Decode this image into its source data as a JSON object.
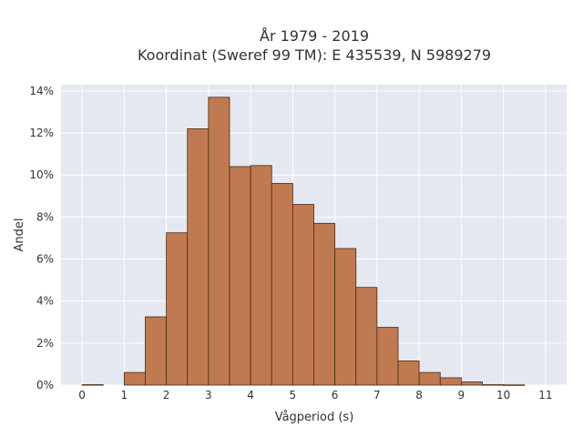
{
  "chart_data": {
    "type": "bar",
    "title_line1": "År 1979 - 2019",
    "title_line2": "Koordinat (Sweref 99 TM): E 435539, N 5989279",
    "xlabel": "Vågperiod (s)",
    "ylabel": "Andel",
    "bin_width": 0.5,
    "bins": [
      {
        "x0": 0.0,
        "x1": 0.5,
        "value": 0.02
      },
      {
        "x0": 1.0,
        "x1": 1.5,
        "value": 0.6
      },
      {
        "x0": 1.5,
        "x1": 2.0,
        "value": 3.25
      },
      {
        "x0": 2.0,
        "x1": 2.5,
        "value": 7.25
      },
      {
        "x0": 2.5,
        "x1": 3.0,
        "value": 12.2
      },
      {
        "x0": 3.0,
        "x1": 3.5,
        "value": 13.7
      },
      {
        "x0": 3.5,
        "x1": 4.0,
        "value": 10.4
      },
      {
        "x0": 4.0,
        "x1": 4.5,
        "value": 10.45
      },
      {
        "x0": 4.5,
        "x1": 5.0,
        "value": 9.6
      },
      {
        "x0": 5.0,
        "x1": 5.5,
        "value": 8.6
      },
      {
        "x0": 5.5,
        "x1": 6.0,
        "value": 7.7
      },
      {
        "x0": 6.0,
        "x1": 6.5,
        "value": 6.5
      },
      {
        "x0": 6.5,
        "x1": 7.0,
        "value": 4.65
      },
      {
        "x0": 7.0,
        "x1": 7.5,
        "value": 2.75
      },
      {
        "x0": 7.5,
        "x1": 8.0,
        "value": 1.15
      },
      {
        "x0": 8.0,
        "x1": 8.5,
        "value": 0.6
      },
      {
        "x0": 8.5,
        "x1": 9.0,
        "value": 0.35
      },
      {
        "x0": 9.0,
        "x1": 9.5,
        "value": 0.15
      },
      {
        "x0": 9.5,
        "x1": 10.0,
        "value": 0.02
      },
      {
        "x0": 10.0,
        "x1": 10.5,
        "value": 0.01
      }
    ],
    "xlim": [
      -0.5,
      11.5
    ],
    "ylim": [
      0,
      14.3
    ],
    "x_ticks": [
      0,
      1,
      2,
      3,
      4,
      5,
      6,
      7,
      8,
      9,
      10,
      11
    ],
    "y_ticks": [
      0,
      2,
      4,
      6,
      8,
      10,
      12,
      14
    ],
    "y_tick_labels": [
      "0%",
      "2%",
      "4%",
      "6%",
      "8%",
      "10%",
      "12%",
      "14%"
    ],
    "grid": true,
    "colors": {
      "bar_fill": "#bf7a52",
      "bar_edge": "#4a2a12",
      "plot_bg": "#e5e8f0",
      "grid": "#ffffff"
    }
  }
}
